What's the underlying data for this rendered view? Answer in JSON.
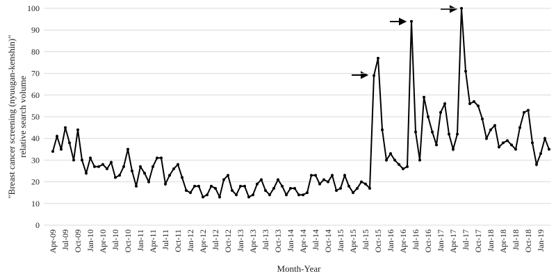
{
  "chart_data": {
    "type": "line",
    "ylabel": [
      "\"Breast cancer screening (nyuugan-kenshin)\"",
      "relative search volume"
    ],
    "xlabel": "Month-Year",
    "categories": [
      "Apr-09",
      null,
      null,
      "Jul-09",
      null,
      null,
      "Oct-09",
      null,
      null,
      "Jan-10",
      null,
      null,
      "Apr-10",
      null,
      null,
      "Jul-10",
      null,
      null,
      "Oct-10",
      null,
      null,
      "Jan-11",
      null,
      null,
      "Apr-11",
      null,
      null,
      "Jul-11",
      null,
      null,
      "Oct-11",
      null,
      null,
      "Jan-12",
      null,
      null,
      "Apr-12",
      null,
      null,
      "Jul-12",
      null,
      null,
      "Oct-12",
      null,
      null,
      "Jan-13",
      null,
      null,
      "Apr-13",
      null,
      null,
      "Jul-13",
      null,
      null,
      "Oct-13",
      null,
      null,
      "Jan-14",
      null,
      null,
      "Apr-14",
      null,
      null,
      "Jul-14",
      null,
      null,
      "Oct-14",
      null,
      null,
      "Jan-15",
      null,
      null,
      "Apr-15",
      null,
      null,
      "Jul-15",
      null,
      null,
      "Oct-15",
      null,
      null,
      "Jan-16",
      null,
      null,
      "Apr-16",
      null,
      null,
      "Jul-16",
      null,
      null,
      "Oct-16",
      null,
      null,
      "Jan-17",
      null,
      null,
      "Apr-17",
      null,
      null,
      "Jul-17",
      null,
      null,
      "Oct-17",
      null,
      null,
      "Jan-18",
      null,
      null,
      "Apr-18",
      null,
      null,
      "Jul-18",
      null,
      null,
      "Oct-18",
      null,
      null,
      "Jan-19",
      null,
      null
    ],
    "values": [
      34,
      41,
      35,
      45,
      38,
      30,
      44,
      30,
      24,
      31,
      27,
      27,
      28,
      26,
      29,
      22,
      23,
      27,
      35,
      25,
      18,
      27,
      24,
      20,
      27,
      31,
      31,
      19,
      23,
      26,
      28,
      22,
      16,
      15,
      18,
      18,
      13,
      14,
      18,
      17,
      13,
      21,
      23,
      16,
      14,
      18,
      18,
      13,
      14,
      19,
      21,
      16,
      14,
      17,
      21,
      18,
      14,
      17,
      17,
      14,
      14,
      15,
      23,
      23,
      19,
      21,
      20,
      23,
      16,
      17,
      23,
      18,
      15,
      17,
      20,
      19,
      17,
      69,
      77,
      44,
      30,
      33,
      30,
      28,
      26,
      27,
      94,
      43,
      30,
      59,
      50,
      43,
      37,
      52,
      56,
      42,
      35,
      42,
      100,
      71,
      56,
      57,
      55,
      49,
      40,
      44,
      46,
      36,
      38,
      39,
      37,
      35,
      45,
      52,
      53,
      38,
      28,
      33,
      40,
      35
    ],
    "color": "#000000",
    "ylim": [
      0,
      100
    ],
    "yticks": [
      0,
      10,
      20,
      30,
      40,
      50,
      60,
      70,
      80,
      90,
      100
    ],
    "grid": true
  }
}
